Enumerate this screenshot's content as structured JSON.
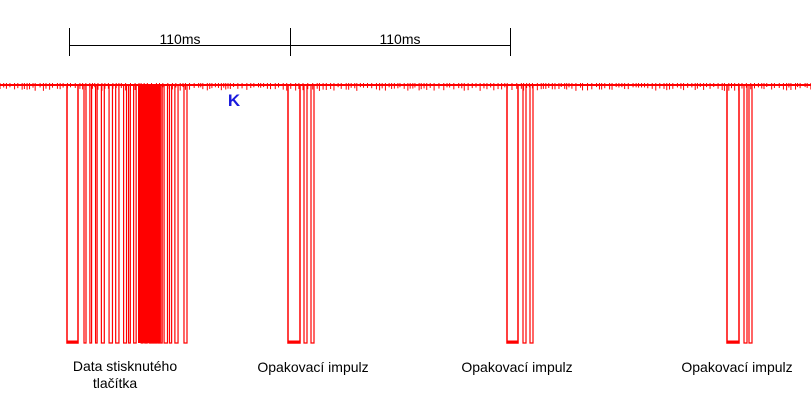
{
  "measurements": [
    "110ms",
    "110ms"
  ],
  "marker": "K",
  "labels": [
    {
      "lines": [
        "Data stisknutého",
        "tlačítka"
      ]
    },
    {
      "lines": [
        "Opakovací impulz"
      ]
    },
    {
      "lines": [
        "Opakovací impulz"
      ]
    },
    {
      "lines": [
        "Opakovací impulz"
      ]
    }
  ]
}
